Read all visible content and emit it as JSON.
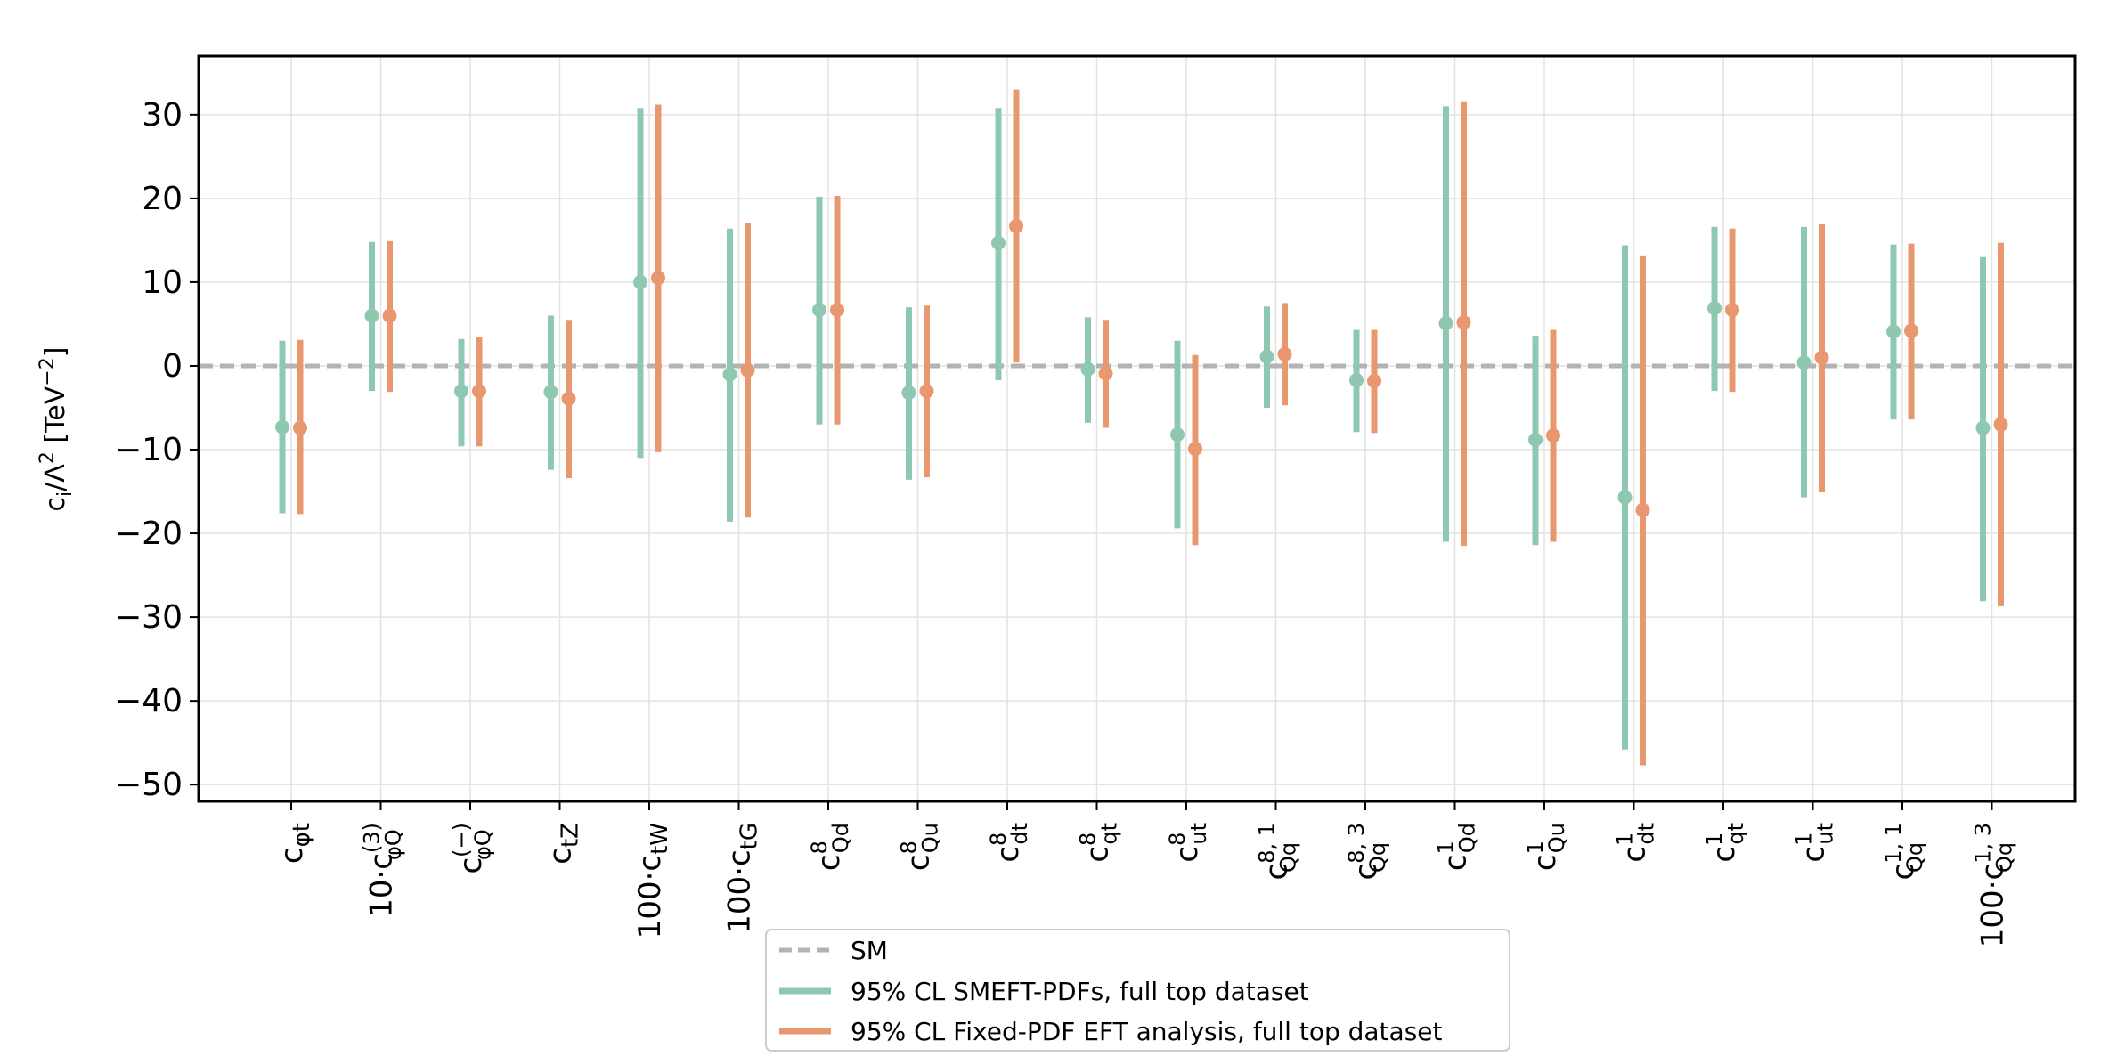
{
  "chart_data": {
    "type": "errorbar",
    "ylabel": "c_i/Λ^2 [TeV^-2]",
    "ylim": [
      -52,
      37
    ],
    "yticks": [
      30,
      20,
      10,
      0,
      -10,
      -20,
      -30,
      -40,
      -50
    ],
    "ytick_labels": [
      "30",
      "20",
      "10",
      "0",
      "−10",
      "−20",
      "−30",
      "−40",
      "−50"
    ],
    "grid": true,
    "reference_line": {
      "value": 0,
      "name": "SM",
      "color": "#b3b3b3",
      "style": "dashed"
    },
    "categories": [
      {
        "prefix": "",
        "base": "c",
        "sub": "φt",
        "sup": ""
      },
      {
        "prefix": "10·",
        "base": "c",
        "sub": "φQ",
        "sup": "(3)"
      },
      {
        "prefix": "",
        "base": "c",
        "sub": "φQ",
        "sup": "(−)"
      },
      {
        "prefix": "",
        "base": "c",
        "sub": "tZ",
        "sup": ""
      },
      {
        "prefix": "100·",
        "base": "c",
        "sub": "tW",
        "sup": ""
      },
      {
        "prefix": "100·",
        "base": "c",
        "sub": "tG",
        "sup": ""
      },
      {
        "prefix": "",
        "base": "c",
        "sub": "Qd",
        "sup": "8"
      },
      {
        "prefix": "",
        "base": "c",
        "sub": "Qu",
        "sup": "8"
      },
      {
        "prefix": "",
        "base": "c",
        "sub": "dt",
        "sup": "8"
      },
      {
        "prefix": "",
        "base": "c",
        "sub": "qt",
        "sup": "8"
      },
      {
        "prefix": "",
        "base": "c",
        "sub": "ut",
        "sup": "8"
      },
      {
        "prefix": "",
        "base": "c",
        "sub": "Qq",
        "sup": "8, 1"
      },
      {
        "prefix": "",
        "base": "c",
        "sub": "Qq",
        "sup": "8, 3"
      },
      {
        "prefix": "",
        "base": "c",
        "sub": "Qd",
        "sup": "1"
      },
      {
        "prefix": "",
        "base": "c",
        "sub": "Qu",
        "sup": "1"
      },
      {
        "prefix": "",
        "base": "c",
        "sub": "dt",
        "sup": "1"
      },
      {
        "prefix": "",
        "base": "c",
        "sub": "qt",
        "sup": "1"
      },
      {
        "prefix": "",
        "base": "c",
        "sub": "ut",
        "sup": "1"
      },
      {
        "prefix": "",
        "base": "c",
        "sub": "Qq",
        "sup": "1, 1"
      },
      {
        "prefix": "100·",
        "base": "c",
        "sub": "Qq",
        "sup": "1, 3"
      }
    ],
    "series": [
      {
        "name": "95% CL SMEFT-PDFs, full top dataset",
        "color": "#8fc8b0",
        "central": [
          -7.3,
          6.0,
          -3.0,
          -3.1,
          10.0,
          -1.0,
          6.7,
          -3.2,
          14.7,
          -0.4,
          -8.2,
          1.1,
          -1.7,
          5.1,
          -8.8,
          -15.7,
          6.9,
          0.4,
          4.1,
          -7.4
        ],
        "low": [
          -17.6,
          -3.0,
          -9.6,
          -12.4,
          -11.0,
          -18.6,
          -7.0,
          -13.6,
          -1.7,
          -6.8,
          -19.4,
          -5.0,
          -7.9,
          -21.0,
          -21.4,
          -45.8,
          -3.0,
          -15.7,
          -6.4,
          -28.1
        ],
        "high": [
          3.0,
          14.8,
          3.2,
          6.0,
          30.8,
          16.4,
          20.2,
          7.0,
          30.8,
          5.8,
          3.0,
          7.1,
          4.3,
          31.0,
          3.6,
          14.4,
          16.6,
          16.6,
          14.5,
          13.0
        ]
      },
      {
        "name": "95% CL Fixed-PDF EFT analysis, full top dataset",
        "color": "#e9976e",
        "central": [
          -7.4,
          6.0,
          -3.0,
          -3.9,
          10.5,
          -0.5,
          6.7,
          -3.0,
          16.7,
          -0.9,
          -9.9,
          1.4,
          -1.8,
          5.2,
          -8.3,
          -17.2,
          6.7,
          1.0,
          4.2,
          -7.0
        ],
        "low": [
          -17.7,
          -3.1,
          -9.6,
          -13.4,
          -10.3,
          -18.1,
          -7.0,
          -13.3,
          0.4,
          -7.4,
          -21.4,
          -4.7,
          -8.0,
          -21.5,
          -21.0,
          -47.7,
          -3.1,
          -15.1,
          -6.4,
          -28.7
        ],
        "high": [
          3.1,
          14.9,
          3.4,
          5.5,
          31.2,
          17.1,
          20.3,
          7.2,
          33.0,
          5.5,
          1.3,
          7.5,
          4.3,
          31.6,
          4.3,
          13.2,
          16.4,
          16.9,
          14.6,
          14.7
        ]
      }
    ],
    "legend": {
      "position": "bottom-center",
      "entries": [
        "SM",
        "95% CL SMEFT-PDFs, full top dataset",
        "95% CL Fixed-PDF EFT analysis, full top dataset"
      ]
    }
  }
}
